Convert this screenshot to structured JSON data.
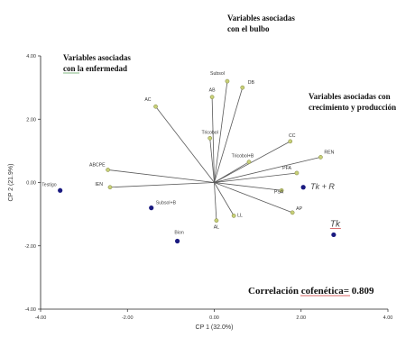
{
  "chart_data": {
    "type": "scatter",
    "xlabel": "CP 1 (32.0%)",
    "ylabel": "CP 2 (21.9%)",
    "xlim": [
      -4.0,
      4.0
    ],
    "ylim": [
      -4.0,
      4.0
    ],
    "xticks": [
      -4,
      -2,
      0,
      2,
      4
    ],
    "yticks": [
      -4,
      -2,
      0,
      2,
      4
    ],
    "xtick_labels": [
      "-4.00",
      "-2.00",
      "0.00",
      "2.00",
      "4.00"
    ],
    "ytick_labels": [
      "-4.00",
      "-2.00",
      "0.00",
      "2.00",
      "4.00"
    ],
    "origin": [
      0,
      0
    ],
    "vectors": [
      {
        "label": "Subsol",
        "x": 0.3,
        "y": 3.2
      },
      {
        "label": "DB",
        "x": 0.65,
        "y": 3.0
      },
      {
        "label": "AB",
        "x": -0.05,
        "y": 2.7
      },
      {
        "label": "AC",
        "x": -1.35,
        "y": 2.4
      },
      {
        "label": "Tricobol",
        "x": -0.1,
        "y": 1.4
      },
      {
        "label": "CC",
        "x": 1.75,
        "y": 1.3
      },
      {
        "label": "REN",
        "x": 2.45,
        "y": 0.8
      },
      {
        "label": "Tricobol+B",
        "x": 0.8,
        "y": 0.65
      },
      {
        "label": "PFA",
        "x": 1.9,
        "y": 0.3
      },
      {
        "label": "PSA",
        "x": 1.55,
        "y": -0.25
      },
      {
        "label": "AP",
        "x": 1.8,
        "y": -0.95
      },
      {
        "label": "ABCPE",
        "x": -2.45,
        "y": 0.4
      },
      {
        "label": "IEN",
        "x": -2.4,
        "y": -0.15
      },
      {
        "label": "AL",
        "x": 0.05,
        "y": -1.2
      },
      {
        "label": "LL",
        "x": 0.45,
        "y": -1.05
      }
    ],
    "points": [
      {
        "label": "Testigo",
        "x": -3.55,
        "y": -0.25
      },
      {
        "label": "Subsol+B",
        "x": -1.45,
        "y": -0.8
      },
      {
        "label": "Bion",
        "x": -0.85,
        "y": -1.85
      },
      {
        "label": "Tk + R",
        "x": 2.05,
        "y": -0.15
      },
      {
        "label": "Tk",
        "x": 2.75,
        "y": -1.65
      }
    ],
    "annotations": [
      {
        "id": "bulbo",
        "lines": [
          "Variables asociadas",
          "con el bulbo"
        ]
      },
      {
        "id": "enfermedad",
        "lines": [
          "Variables asociadas",
          "con la enfermedad"
        ]
      },
      {
        "id": "crecimiento",
        "lines": [
          "Variables asociadas con",
          "crecimiento y producción"
        ]
      }
    ],
    "correlation_label": "Correlación cofenética= 0.809",
    "colors": {
      "vector": "#5a5a5a",
      "vector_tip": "#c8d078",
      "point": "#1a1a80",
      "axis": "#222222"
    }
  }
}
